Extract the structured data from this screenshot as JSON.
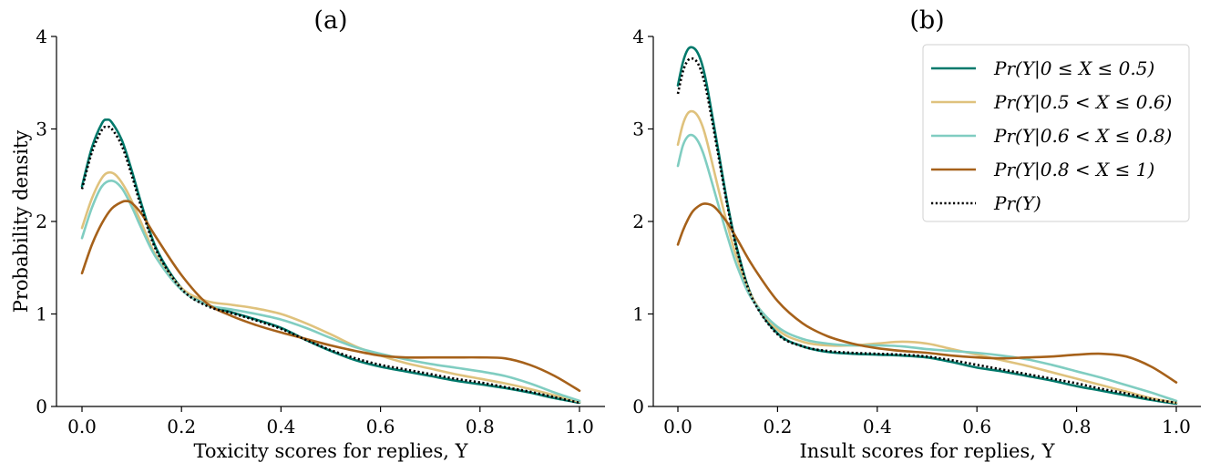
{
  "chart_data": [
    {
      "type": "line",
      "title": "(a)",
      "xlabel": "Toxicity scores for replies, Y",
      "ylabel": "Probability density",
      "xlim": [
        -0.03,
        1.05
      ],
      "ylim": [
        0,
        4
      ],
      "xticks": [
        "0.0",
        "0.2",
        "0.4",
        "0.6",
        "0.8",
        "1.0"
      ],
      "yticks": [
        "0",
        "1",
        "2",
        "3",
        "4"
      ],
      "series": [
        {
          "name": "Pr(Y|0 ≤ X ≤ 0.5)",
          "color": "#00796b",
          "style": "solid",
          "x": [
            0.0,
            0.02,
            0.04,
            0.05,
            0.06,
            0.08,
            0.1,
            0.12,
            0.15,
            0.2,
            0.25,
            0.3,
            0.35,
            0.4,
            0.45,
            0.5,
            0.55,
            0.6,
            0.65,
            0.7,
            0.75,
            0.8,
            0.85,
            0.9,
            0.95,
            1.0
          ],
          "y": [
            2.38,
            2.8,
            3.06,
            3.1,
            3.07,
            2.88,
            2.55,
            2.18,
            1.7,
            1.28,
            1.1,
            1.02,
            0.94,
            0.85,
            0.72,
            0.6,
            0.5,
            0.43,
            0.38,
            0.33,
            0.28,
            0.24,
            0.2,
            0.15,
            0.09,
            0.04
          ]
        },
        {
          "name": "Pr(Y|0.5 < X ≤ 0.6)",
          "color": "#dfc27d",
          "style": "solid",
          "x": [
            0.0,
            0.02,
            0.04,
            0.055,
            0.07,
            0.09,
            0.11,
            0.13,
            0.15,
            0.2,
            0.25,
            0.3,
            0.35,
            0.4,
            0.45,
            0.5,
            0.55,
            0.6,
            0.65,
            0.7,
            0.75,
            0.8,
            0.85,
            0.9,
            0.95,
            1.0
          ],
          "y": [
            1.93,
            2.25,
            2.47,
            2.53,
            2.49,
            2.33,
            2.1,
            1.85,
            1.62,
            1.28,
            1.14,
            1.1,
            1.06,
            1.0,
            0.9,
            0.78,
            0.65,
            0.55,
            0.47,
            0.41,
            0.35,
            0.3,
            0.25,
            0.19,
            0.12,
            0.05
          ]
        },
        {
          "name": "Pr(Y|0.6 < X ≤ 0.8)",
          "color": "#80cdc1",
          "style": "solid",
          "x": [
            0.0,
            0.02,
            0.04,
            0.06,
            0.08,
            0.1,
            0.12,
            0.15,
            0.2,
            0.25,
            0.3,
            0.35,
            0.4,
            0.45,
            0.5,
            0.55,
            0.6,
            0.65,
            0.7,
            0.75,
            0.8,
            0.85,
            0.9,
            0.95,
            1.0
          ],
          "y": [
            1.82,
            2.15,
            2.38,
            2.44,
            2.36,
            2.16,
            1.92,
            1.6,
            1.26,
            1.1,
            1.05,
            1.0,
            0.94,
            0.85,
            0.74,
            0.64,
            0.57,
            0.51,
            0.46,
            0.42,
            0.38,
            0.33,
            0.25,
            0.15,
            0.06
          ]
        },
        {
          "name": "Pr(Y|0.8 < X ≤ 1)",
          "color": "#a6611a",
          "style": "solid",
          "x": [
            0.0,
            0.02,
            0.04,
            0.06,
            0.08,
            0.09,
            0.1,
            0.12,
            0.15,
            0.2,
            0.25,
            0.3,
            0.35,
            0.4,
            0.45,
            0.5,
            0.55,
            0.6,
            0.65,
            0.7,
            0.75,
            0.8,
            0.85,
            0.9,
            0.95,
            1.0
          ],
          "y": [
            1.44,
            1.75,
            1.98,
            2.14,
            2.21,
            2.22,
            2.2,
            2.08,
            1.82,
            1.42,
            1.12,
            0.98,
            0.88,
            0.8,
            0.73,
            0.66,
            0.6,
            0.55,
            0.53,
            0.53,
            0.53,
            0.53,
            0.52,
            0.45,
            0.33,
            0.17
          ]
        },
        {
          "name": "Pr(Y)",
          "color": "#000000",
          "style": "dotted",
          "x": [
            0.0,
            0.02,
            0.04,
            0.05,
            0.06,
            0.08,
            0.1,
            0.12,
            0.15,
            0.2,
            0.25,
            0.3,
            0.35,
            0.4,
            0.45,
            0.5,
            0.55,
            0.6,
            0.65,
            0.7,
            0.75,
            0.8,
            0.85,
            0.9,
            0.95,
            1.0
          ],
          "y": [
            2.35,
            2.75,
            2.99,
            3.02,
            3.0,
            2.82,
            2.5,
            2.14,
            1.68,
            1.27,
            1.09,
            1.01,
            0.93,
            0.84,
            0.72,
            0.61,
            0.52,
            0.45,
            0.4,
            0.35,
            0.3,
            0.26,
            0.21,
            0.16,
            0.1,
            0.04
          ]
        }
      ]
    },
    {
      "type": "line",
      "title": "(b)",
      "xlabel": "Insult scores for replies, Y",
      "ylabel": "",
      "xlim": [
        -0.03,
        1.05
      ],
      "ylim": [
        0,
        4
      ],
      "xticks": [
        "0.0",
        "0.2",
        "0.4",
        "0.6",
        "0.8",
        "1.0"
      ],
      "yticks": [
        "0",
        "1",
        "2",
        "3",
        "4"
      ],
      "legend_location": "top-right",
      "series": [
        {
          "name": "Pr(Y|0 ≤ X ≤ 0.5)",
          "color": "#00796b",
          "style": "solid",
          "x": [
            0.0,
            0.01,
            0.02,
            0.03,
            0.04,
            0.05,
            0.06,
            0.08,
            0.1,
            0.12,
            0.15,
            0.2,
            0.25,
            0.3,
            0.35,
            0.4,
            0.45,
            0.5,
            0.55,
            0.6,
            0.65,
            0.7,
            0.75,
            0.8,
            0.85,
            0.9,
            0.95,
            1.0
          ],
          "y": [
            3.47,
            3.72,
            3.86,
            3.88,
            3.82,
            3.67,
            3.42,
            2.8,
            2.18,
            1.68,
            1.17,
            0.79,
            0.65,
            0.59,
            0.57,
            0.56,
            0.55,
            0.53,
            0.48,
            0.42,
            0.38,
            0.33,
            0.28,
            0.22,
            0.17,
            0.12,
            0.07,
            0.03
          ]
        },
        {
          "name": "Pr(Y|0.5 < X ≤ 0.6)",
          "color": "#dfc27d",
          "style": "solid",
          "x": [
            0.0,
            0.01,
            0.02,
            0.03,
            0.04,
            0.05,
            0.06,
            0.08,
            0.1,
            0.12,
            0.15,
            0.2,
            0.25,
            0.3,
            0.35,
            0.4,
            0.45,
            0.5,
            0.55,
            0.6,
            0.65,
            0.7,
            0.75,
            0.8,
            0.85,
            0.9,
            0.95,
            1.0
          ],
          "y": [
            2.83,
            3.05,
            3.17,
            3.19,
            3.14,
            3.02,
            2.83,
            2.38,
            1.95,
            1.58,
            1.17,
            0.83,
            0.7,
            0.66,
            0.66,
            0.68,
            0.7,
            0.68,
            0.62,
            0.56,
            0.5,
            0.44,
            0.37,
            0.3,
            0.23,
            0.16,
            0.09,
            0.04
          ]
        },
        {
          "name": "Pr(Y|0.6 < X ≤ 0.8)",
          "color": "#80cdc1",
          "style": "solid",
          "x": [
            0.0,
            0.01,
            0.02,
            0.03,
            0.04,
            0.05,
            0.06,
            0.08,
            0.1,
            0.12,
            0.15,
            0.2,
            0.25,
            0.3,
            0.35,
            0.4,
            0.45,
            0.5,
            0.55,
            0.6,
            0.65,
            0.7,
            0.75,
            0.8,
            0.85,
            0.9,
            0.95,
            1.0
          ],
          "y": [
            2.6,
            2.82,
            2.92,
            2.93,
            2.87,
            2.75,
            2.58,
            2.2,
            1.83,
            1.5,
            1.15,
            0.86,
            0.73,
            0.68,
            0.66,
            0.66,
            0.65,
            0.62,
            0.6,
            0.58,
            0.55,
            0.51,
            0.45,
            0.38,
            0.31,
            0.23,
            0.15,
            0.06
          ]
        },
        {
          "name": "Pr(Y|0.8 < X ≤ 1)",
          "color": "#a6611a",
          "style": "solid",
          "x": [
            0.0,
            0.01,
            0.02,
            0.03,
            0.04,
            0.05,
            0.06,
            0.07,
            0.08,
            0.1,
            0.12,
            0.15,
            0.2,
            0.25,
            0.3,
            0.35,
            0.4,
            0.45,
            0.5,
            0.55,
            0.6,
            0.65,
            0.7,
            0.75,
            0.8,
            0.85,
            0.9,
            0.95,
            1.0
          ],
          "y": [
            1.75,
            1.9,
            2.02,
            2.11,
            2.16,
            2.19,
            2.19,
            2.17,
            2.12,
            1.98,
            1.8,
            1.52,
            1.14,
            0.9,
            0.76,
            0.68,
            0.63,
            0.6,
            0.58,
            0.55,
            0.53,
            0.52,
            0.53,
            0.54,
            0.56,
            0.57,
            0.54,
            0.43,
            0.26
          ]
        },
        {
          "name": "Pr(Y)",
          "color": "#000000",
          "style": "dotted",
          "x": [
            0.0,
            0.01,
            0.02,
            0.03,
            0.04,
            0.05,
            0.06,
            0.08,
            0.1,
            0.12,
            0.15,
            0.2,
            0.25,
            0.3,
            0.35,
            0.4,
            0.45,
            0.5,
            0.55,
            0.6,
            0.65,
            0.7,
            0.75,
            0.8,
            0.85,
            0.9,
            0.95,
            1.0
          ],
          "y": [
            3.38,
            3.62,
            3.74,
            3.76,
            3.71,
            3.57,
            3.34,
            2.75,
            2.15,
            1.66,
            1.16,
            0.78,
            0.65,
            0.6,
            0.58,
            0.57,
            0.56,
            0.54,
            0.5,
            0.45,
            0.4,
            0.35,
            0.3,
            0.25,
            0.19,
            0.14,
            0.08,
            0.04
          ]
        }
      ]
    }
  ]
}
